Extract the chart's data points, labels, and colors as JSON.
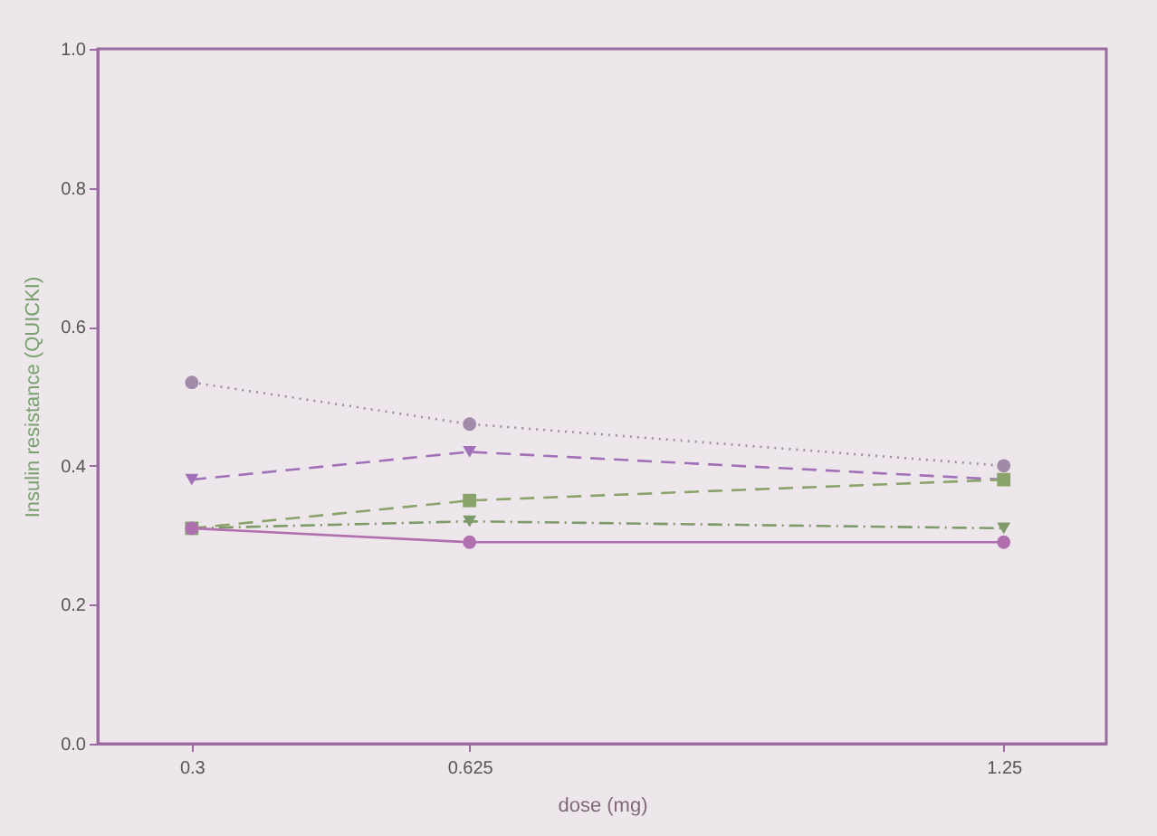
{
  "chart_data": {
    "type": "line",
    "xlabel": "dose (mg)",
    "ylabel": "Insulin resistance (QUICKI)",
    "x": [
      0.3,
      0.625,
      1.25
    ],
    "xlim": [
      0.19,
      1.37
    ],
    "xticks": [
      0.3,
      0.625,
      1.25
    ],
    "ylim": [
      0,
      1
    ],
    "yticks": [
      {
        "value": 0,
        "label": "0.0"
      },
      {
        "value": 0.2,
        "label": "0.2"
      },
      {
        "value": 0.4,
        "label": "0.4"
      },
      {
        "value": 0.6,
        "label": "0.6"
      },
      {
        "value": 0.8,
        "label": "0.8"
      },
      {
        "value": 1,
        "label": "1.0"
      }
    ],
    "grid": false,
    "legend": false,
    "series": [
      {
        "color": "#a08aa8",
        "values": [
          0.52,
          0.46,
          0.4
        ],
        "marker": "circle",
        "line_style": "dotted"
      },
      {
        "color": "#a070b8",
        "values": [
          0.38,
          0.42,
          0.38
        ],
        "marker": "triangle",
        "line_style": "dashed"
      },
      {
        "color": "#8aa36a",
        "values": [
          0.31,
          0.35,
          0.38
        ],
        "marker": "square",
        "line_style": "dashed"
      },
      {
        "color": "#7f9a6a",
        "values": [
          0.31,
          0.32,
          0.31
        ],
        "marker": "triangle",
        "line_style": "dashdot"
      },
      {
        "color": "#b070b0",
        "values": [
          0.31,
          0.29,
          0.29
        ],
        "marker": "circle",
        "line_style": "solid"
      }
    ]
  }
}
